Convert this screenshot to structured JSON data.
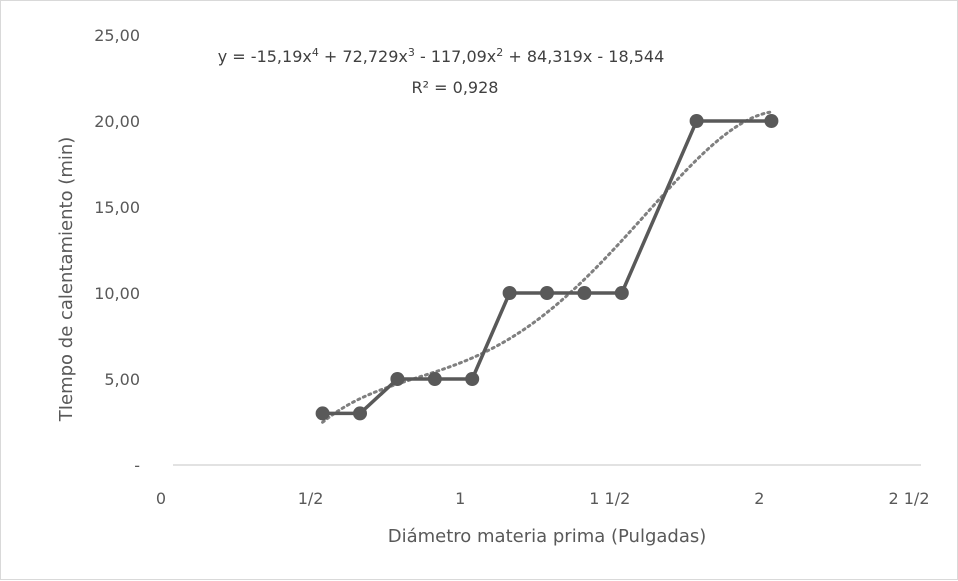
{
  "chart_data": {
    "type": "scatter",
    "xlabel": "Diámetro materia prima (Pulgadas)",
    "ylabel": "TIempo de calentamiento (min)",
    "xlim": [
      0,
      2.5
    ],
    "ylim": [
      0,
      25
    ],
    "x_ticks": [
      {
        "value": 0,
        "label": "0"
      },
      {
        "value": 0.5,
        "label": "1/2"
      },
      {
        "value": 1,
        "label": "1"
      },
      {
        "value": 1.5,
        "label": "1 1/2"
      },
      {
        "value": 2,
        "label": "2"
      },
      {
        "value": 2.5,
        "label": "2 1/2"
      }
    ],
    "y_ticks": [
      {
        "value": 0,
        "label": "-"
      },
      {
        "value": 5,
        "label": "5,00"
      },
      {
        "value": 10,
        "label": "10,00"
      },
      {
        "value": 15,
        "label": "15,00"
      },
      {
        "value": 20,
        "label": "20,00"
      },
      {
        "value": 25,
        "label": "25,00"
      }
    ],
    "series": [
      {
        "x": [
          0.5,
          0.625,
          0.75,
          0.875,
          1.0,
          1.125,
          1.25,
          1.375,
          1.5,
          1.75,
          2.0
        ],
        "y": [
          3,
          3,
          5,
          5,
          5,
          10,
          10,
          10,
          10,
          20,
          20
        ],
        "color": "#595959"
      }
    ],
    "trendline": {
      "type": "polynomial",
      "order": 4,
      "coefficients": [
        -15.19,
        72.729,
        -117.09,
        84.319,
        -18.544
      ],
      "style": "dotted",
      "color": "#7f7f7f",
      "equation": {
        "prefix": "y = -15,19x",
        "p1": "4",
        "mid1": " + 72,729x",
        "p2": "3",
        "mid2": " - 117,09x",
        "p3": "2",
        "tail": " + 84,319x - 18,544"
      },
      "r_squared": "R² = 0,928"
    },
    "grid": false,
    "legend": "none"
  }
}
